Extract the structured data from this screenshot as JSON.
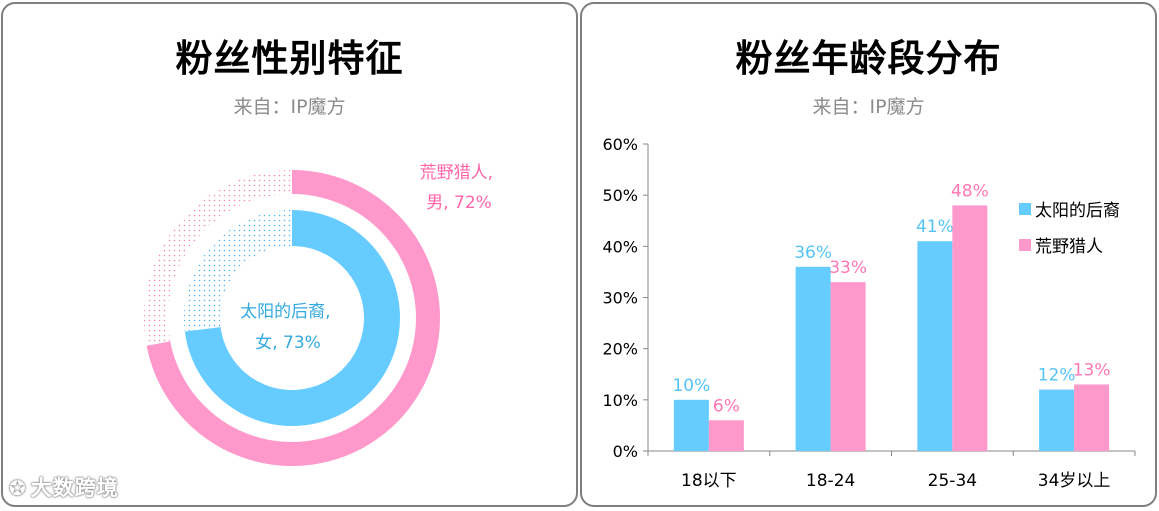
{
  "left_panel": {
    "title": "粉丝性别特征",
    "subtitle": "来自：IP魔方"
  },
  "right_panel": {
    "title": "粉丝年龄段分布",
    "subtitle": "来自：IP魔方"
  },
  "watermark": {
    "icon": "logo-icon",
    "text": "大数跨境"
  },
  "colors": {
    "blue": "#66ccff",
    "pink": "#ff99cc"
  },
  "chart_data": [
    {
      "type": "pie",
      "variant": "donut-nested",
      "rings": [
        {
          "position": "outer",
          "name": "荒野猎人",
          "label_lines": [
            "荒野猎人,",
            "男, 72%"
          ],
          "value": 72,
          "color": "#ff99cc",
          "remainder_pattern": "dotted"
        },
        {
          "position": "inner",
          "name": "太阳的后裔",
          "label_lines": [
            "太阳的后裔,",
            "女, 73%"
          ],
          "value": 73,
          "color": "#66ccff",
          "remainder_pattern": "dotted"
        }
      ]
    },
    {
      "type": "bar",
      "categories": [
        "18以下",
        "18-24",
        "25-34",
        "34岁以上"
      ],
      "series": [
        {
          "name": "太阳的后裔",
          "values": [
            10,
            36,
            41,
            12
          ],
          "labels": [
            "10%",
            "36%",
            "41%",
            "12%"
          ],
          "color": "#66ccff"
        },
        {
          "name": "荒野猎人",
          "values": [
            6,
            33,
            48,
            13
          ],
          "labels": [
            "6%",
            "33%",
            "48%",
            "13%"
          ],
          "color": "#ff99cc"
        }
      ],
      "ylim": [
        0,
        60
      ],
      "yticks": [
        "0%",
        "10%",
        "20%",
        "30%",
        "40%",
        "50%",
        "60%"
      ],
      "grid": false,
      "legend": "right"
    }
  ]
}
